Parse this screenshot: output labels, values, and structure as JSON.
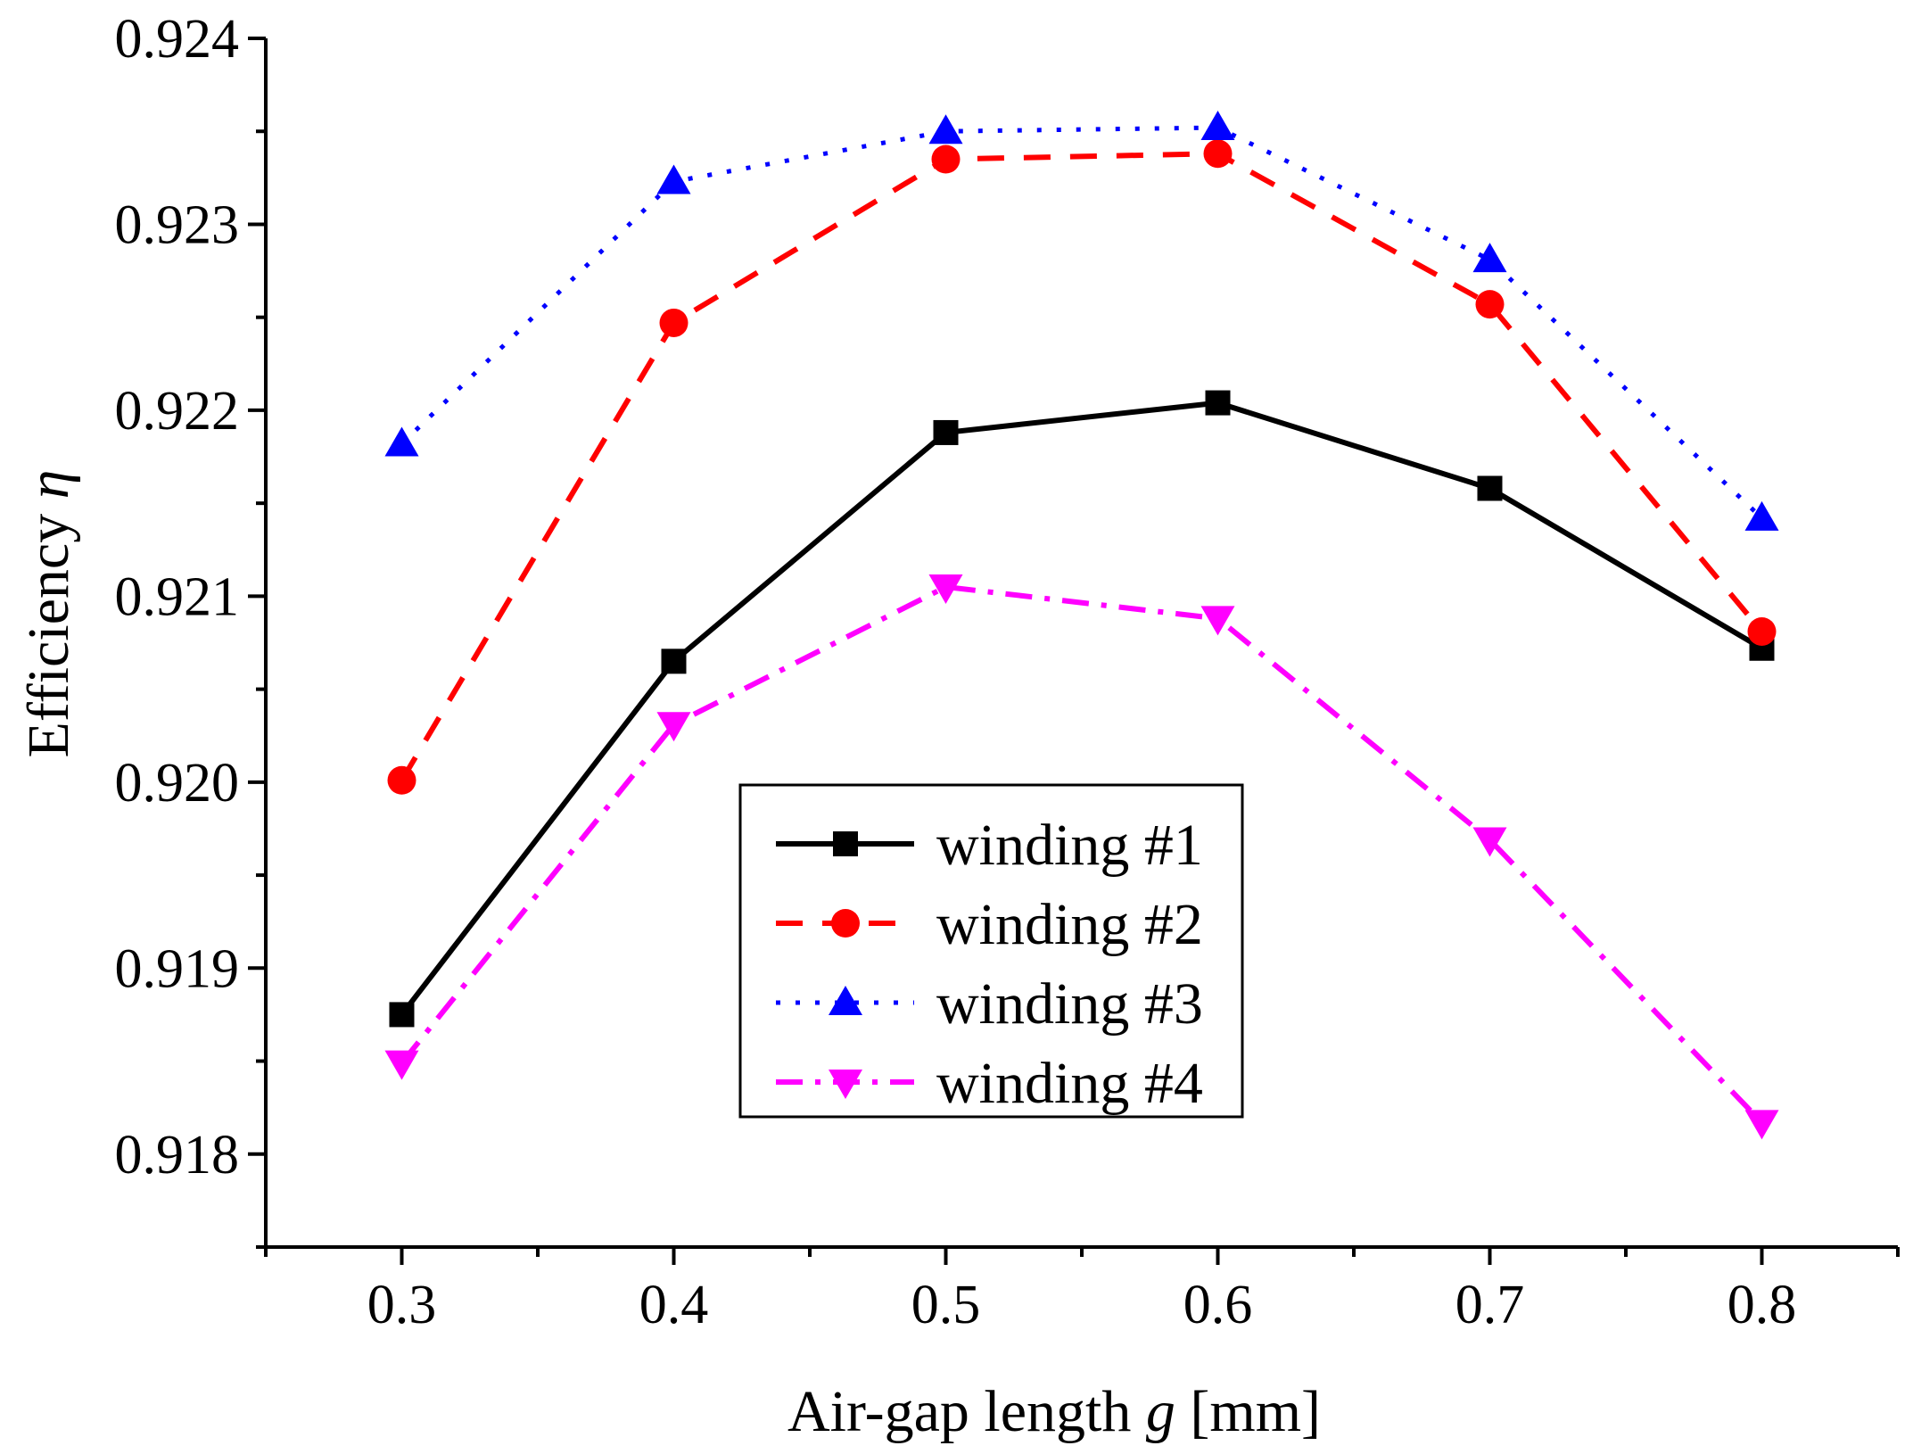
{
  "chart_data": {
    "type": "line",
    "xlabel": {
      "text": "Air-gap length ",
      "var": "g",
      "unit": " [mm]"
    },
    "ylabel": {
      "text": "Efficiency ",
      "var": "η"
    },
    "xlim": [
      0.25,
      0.85
    ],
    "ylim": [
      0.9175,
      0.924
    ],
    "x_ticks": [
      {
        "value": 0.3,
        "label": "0.3"
      },
      {
        "value": 0.4,
        "label": "0.4"
      },
      {
        "value": 0.5,
        "label": "0.5"
      },
      {
        "value": 0.6,
        "label": "0.6"
      },
      {
        "value": 0.7,
        "label": "0.7"
      },
      {
        "value": 0.8,
        "label": "0.8"
      }
    ],
    "y_ticks": [
      {
        "value": 0.918,
        "label": "0.918"
      },
      {
        "value": 0.919,
        "label": "0.919"
      },
      {
        "value": 0.92,
        "label": "0.920"
      },
      {
        "value": 0.921,
        "label": "0.921"
      },
      {
        "value": 0.922,
        "label": "0.922"
      },
      {
        "value": 0.923,
        "label": "0.923"
      },
      {
        "value": 0.924,
        "label": "0.924"
      }
    ],
    "x_minor": [
      0.25,
      0.35,
      0.45,
      0.55,
      0.65,
      0.75,
      0.85
    ],
    "y_minor": [
      0.9175,
      0.9185,
      0.9195,
      0.9205,
      0.9215,
      0.9225,
      0.9235
    ],
    "x": [
      0.3,
      0.4,
      0.5,
      0.6,
      0.7,
      0.8
    ],
    "legend_position": "center",
    "grid": false,
    "series": [
      {
        "name": "winding #1",
        "values": [
          0.91875,
          0.92065,
          0.92188,
          0.92204,
          0.92158,
          0.92072
        ],
        "color": "#000000",
        "marker": "square",
        "dash": "solid"
      },
      {
        "name": "winding #2",
        "values": [
          0.92001,
          0.92247,
          0.92335,
          0.92338,
          0.92257,
          0.92081
        ],
        "color": "#ff0000",
        "marker": "circle",
        "dash": "dash"
      },
      {
        "name": "winding #3",
        "values": [
          0.92182,
          0.92323,
          0.9235,
          0.92352,
          0.92281,
          0.92142
        ],
        "color": "#0000ff",
        "marker": "triangle-up",
        "dash": "dot"
      },
      {
        "name": "winding #4",
        "values": [
          0.91849,
          0.92031,
          0.92105,
          0.92088,
          0.91969,
          0.91817
        ],
        "color": "#ff00ff",
        "marker": "triangle-down",
        "dash": "dash-dot"
      }
    ]
  }
}
